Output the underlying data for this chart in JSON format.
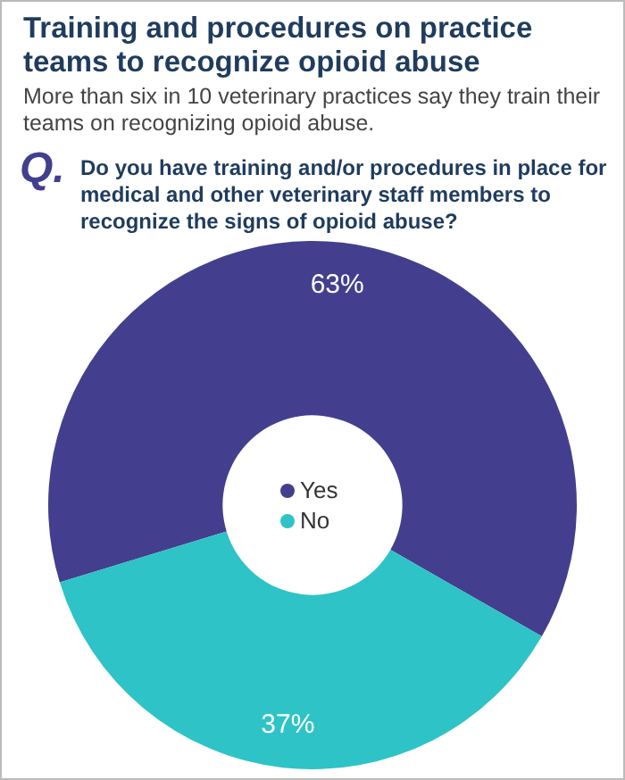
{
  "chart_data": {
    "type": "donut",
    "title": "Training and procedures on practice teams to recognize opioid abuse",
    "subtitle": "More than six in 10 veterinary practices say they train their teams on recognizing opioid abuse.",
    "annotations": [
      "Q.",
      "Do you have training and/or procedures in place for medical and other veterinary staff members to recognize the signs of opioid abuse?"
    ],
    "categories": [
      "Yes",
      "No"
    ],
    "values": [
      63,
      37
    ],
    "colors": [
      "#433f8e",
      "#2ec3c6"
    ],
    "value_labels": [
      "63%",
      "37%"
    ],
    "legend": "center"
  }
}
